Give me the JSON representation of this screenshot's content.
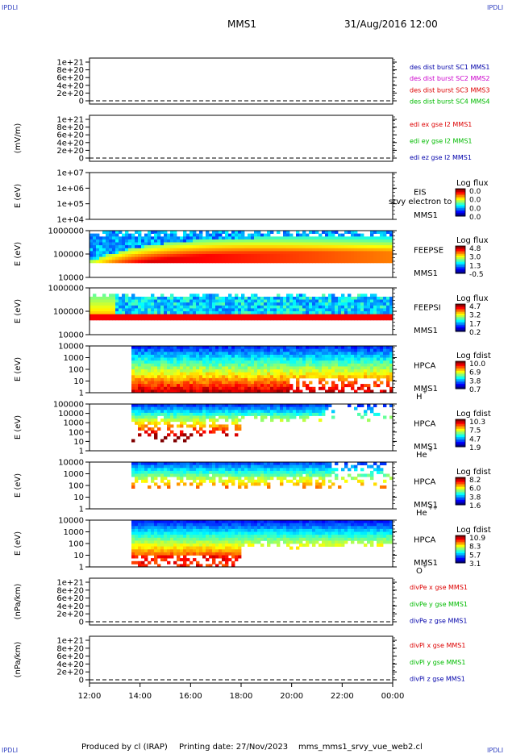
{
  "header": {
    "corner_tl": "IPDLI",
    "corner_tr": "IPDLI",
    "corner_bl": "IPDLI",
    "corner_br": "IPDLI",
    "spacecraft": "MMS1",
    "datetime": "31/Aug/2016 12:00"
  },
  "footer": {
    "produced": "Produced by cl (IRAP)",
    "printing": "Printing date: 27/Nov/2023",
    "file": "mms_mms1_srvy_vue_web2.cl"
  },
  "colors": {
    "red": "#dd0000",
    "magenta": "#cc00cc",
    "green": "#00bb00",
    "blue": "#0000aa",
    "cyan": "#00ccee"
  },
  "chart_data": [
    {
      "type": "line",
      "panel": "des-dist-burst",
      "ylabel": "",
      "yticks": [
        "1e+21",
        "8e+20",
        "6e+20",
        "4e+20",
        "2e+20",
        "0"
      ],
      "ylim": [
        0,
        1e+21
      ],
      "legend": [
        {
          "text": "des dist burst SC1 MMS1",
          "color": "blue"
        },
        {
          "text": "des dist burst SC2 MMS2",
          "color": "magenta"
        },
        {
          "text": "des dist burst SC3 MMS3",
          "color": "red"
        },
        {
          "text": "des dist burst SC4 MMS4",
          "color": "green"
        }
      ]
    },
    {
      "type": "line",
      "panel": "edi-e",
      "ylabel": "(mV/m)",
      "yticks": [
        "1e+21",
        "8e+20",
        "6e+20",
        "4e+20",
        "2e+20",
        "0"
      ],
      "ylim": [
        0,
        1e+21
      ],
      "legend": [
        {
          "text": "edi ex gse l2 MMS1",
          "color": "red"
        },
        {
          "text": "edi ey gse l2 MMS1",
          "color": "green"
        },
        {
          "text": "edi ez gse l2 MMS1",
          "color": "blue"
        }
      ]
    },
    {
      "type": "heatmap",
      "panel": "eis",
      "ylabel": "E (eV)",
      "yticks": [
        "1e+07",
        "1e+06",
        "1e+05",
        "1e+04"
      ],
      "labels": [
        "EIS",
        "MMS1"
      ],
      "overlay": "srvy electron to",
      "cb_title": "Log flux",
      "cb_ticks": [
        "0.0",
        "0.0",
        "0.0",
        "0.0"
      ]
    },
    {
      "type": "heatmap",
      "panel": "feeps-e",
      "ylabel": "E (eV)",
      "yticks": [
        "1000000",
        "100000",
        "10000"
      ],
      "labels": [
        "FEEPSE",
        "MMS1"
      ],
      "cb_title": "Log flux",
      "cb_ticks": [
        "4.8",
        "3.0",
        "1.3",
        "-0.5"
      ]
    },
    {
      "type": "heatmap",
      "panel": "feeps-i",
      "ylabel": "E (eV)",
      "yticks": [
        "1000000",
        "100000",
        "10000"
      ],
      "labels": [
        "FEEPSI",
        "MMS1"
      ],
      "cb_title": "Log flux",
      "cb_ticks": [
        "4.7",
        "3.2",
        "1.7",
        "0.2"
      ]
    },
    {
      "type": "heatmap",
      "panel": "hpca-h",
      "ylabel": "E (eV)",
      "yticks": [
        "10000",
        "1000",
        "100",
        "10",
        "1"
      ],
      "labels": [
        "HPCA",
        "MMS1"
      ],
      "species": "H",
      "charge": "+",
      "cb_title": "Log fdist",
      "cb_ticks": [
        "10.0",
        "6.9",
        "3.8",
        "0.7"
      ]
    },
    {
      "type": "heatmap",
      "panel": "hpca-he",
      "ylabel": "E (eV)",
      "yticks": [
        "100000",
        "10000",
        "1000",
        "100",
        "10",
        "1"
      ],
      "labels": [
        "HPCA",
        "MMS1"
      ],
      "species": "He",
      "charge": "+",
      "cb_title": "Log fdist",
      "cb_ticks": [
        "10.3",
        "7.5",
        "4.7",
        "1.9"
      ]
    },
    {
      "type": "heatmap",
      "panel": "hpca-he2",
      "ylabel": "E (eV)",
      "yticks": [
        "10000",
        "1000",
        "100",
        "10",
        "1"
      ],
      "labels": [
        "HPCA",
        "MMS1"
      ],
      "species": "He",
      "charge": "++",
      "cb_title": "Log fdist",
      "cb_ticks": [
        "8.2",
        "6.0",
        "3.8",
        "1.6"
      ]
    },
    {
      "type": "heatmap",
      "panel": "hpca-o",
      "ylabel": "E (eV)",
      "yticks": [
        "10000",
        "1000",
        "100",
        "10",
        "1"
      ],
      "labels": [
        "HPCA",
        "MMS1"
      ],
      "species": "O",
      "charge": "+",
      "cb_title": "Log fdist",
      "cb_ticks": [
        "10.9",
        "8.3",
        "5.7",
        "3.1"
      ]
    },
    {
      "type": "line",
      "panel": "divpe",
      "ylabel": "(nPa/km)",
      "yticks": [
        "1e+21",
        "8e+20",
        "6e+20",
        "4e+20",
        "2e+20",
        "0"
      ],
      "ylim": [
        0,
        1e+21
      ],
      "legend": [
        {
          "text": "divPe x gse MMS1",
          "color": "red"
        },
        {
          "text": "divPe y gse MMS1",
          "color": "green"
        },
        {
          "text": "divPe z gse MMS1",
          "color": "blue"
        }
      ]
    },
    {
      "type": "line",
      "panel": "divpi",
      "ylabel": "(nPa/km)",
      "yticks": [
        "1e+21",
        "8e+20",
        "6e+20",
        "4e+20",
        "2e+20",
        "0"
      ],
      "ylim": [
        0,
        1e+21
      ],
      "legend": [
        {
          "text": "divPi x gse MMS1",
          "color": "red"
        },
        {
          "text": "divPi y gse MMS1",
          "color": "green"
        },
        {
          "text": "divPi z gse MMS1",
          "color": "blue"
        }
      ]
    }
  ],
  "xaxis": {
    "ticks": [
      "12:00",
      "14:00",
      "16:00",
      "18:00",
      "20:00",
      "22:00",
      "00:00"
    ]
  }
}
